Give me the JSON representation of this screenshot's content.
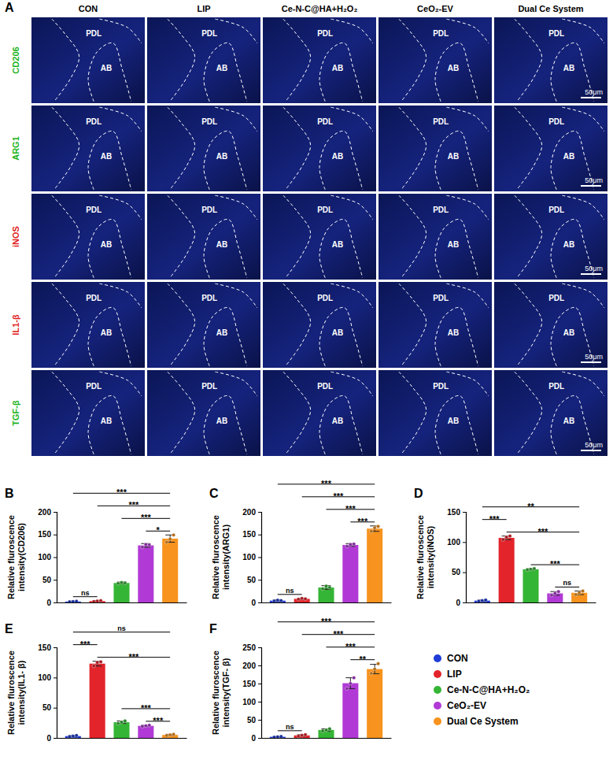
{
  "figure": {
    "panel_A": {
      "label": "A",
      "columns": [
        "CON",
        "LIP",
        "Ce-N-C@HA+H₂O₂",
        "CeO₂-EV",
        "Dual Ce System"
      ],
      "rows": [
        {
          "marker": "CD206",
          "color": "#1bb31b",
          "scale_bar": "50μm",
          "cells": [
            [
              "PDL",
              "AB"
            ],
            [
              "PDL",
              "AB"
            ],
            [
              "PDL",
              "AB"
            ],
            [
              "PDL",
              "AB"
            ],
            [
              "PDL",
              "AB"
            ]
          ]
        },
        {
          "marker": "ARG1",
          "color": "#1bb31b",
          "scale_bar": "50μm",
          "cells": [
            [
              "PDL",
              "AB"
            ],
            [
              "PDL",
              "AB"
            ],
            [
              "PDL",
              "AB"
            ],
            [
              "PDL",
              "AB"
            ],
            [
              "PDL",
              "AB"
            ]
          ]
        },
        {
          "marker": "iNOS",
          "color": "#e02020",
          "scale_bar": "50μm",
          "cells": [
            [
              "PDL",
              "AB"
            ],
            [
              "PDL",
              "AB"
            ],
            [
              "PDL",
              "AB"
            ],
            [
              "PDL",
              "AB"
            ],
            [
              "PDL",
              "AB"
            ]
          ]
        },
        {
          "marker": "IL1-β",
          "color": "#e02020",
          "scale_bar": "50μm",
          "cells": [
            [
              "PDL",
              "AB"
            ],
            [
              "PDL",
              "AB"
            ],
            [
              "PDL",
              "AB"
            ],
            [
              "PDL",
              "AB"
            ],
            [
              "PDL",
              "AB"
            ]
          ]
        },
        {
          "marker": "TGF-β",
          "color": "#1bb31b",
          "scale_bar": "50μm",
          "cells": [
            [
              "PDL",
              "AB"
            ],
            [
              "PDL",
              "AB"
            ],
            [
              "PDL",
              "AB"
            ],
            [
              "PDL",
              "AB"
            ],
            [
              "PDL",
              "AB"
            ]
          ]
        }
      ]
    }
  },
  "shared_legend": {
    "names": [
      "CON",
      "LIP",
      "Ce-N-C@HA+H₂O₂",
      "CeO₂-EV",
      "Dual Ce System"
    ],
    "colors": [
      "#1f3cd6",
      "#e3242b",
      "#35b535",
      "#b13ad6",
      "#f7931e"
    ]
  },
  "chart_data": [
    {
      "type": "bar",
      "panel_label": "B",
      "y_label": "Relative fluroscence intensity(CD206)",
      "categories": [
        null,
        null,
        null,
        null,
        null
      ],
      "values": [
        2,
        3,
        43,
        126,
        141
      ],
      "errors": [
        1,
        1,
        2,
        4,
        8
      ],
      "points": [
        [
          1.5,
          2,
          2.5
        ],
        [
          2,
          3,
          4
        ],
        [
          42,
          44,
          43
        ],
        [
          122,
          128,
          127
        ],
        [
          133,
          140,
          149
        ]
      ],
      "colors": [
        "#1f3cd6",
        "#e3242b",
        "#35b535",
        "#b13ad6",
        "#f7931e"
      ],
      "ylim": [
        0,
        200
      ],
      "yticks": [
        0,
        50,
        100,
        150,
        200
      ],
      "tick_labels": "y",
      "comparisons": [
        {
          "from": 0,
          "to": 1,
          "label": "ns"
        },
        {
          "from": 3,
          "to": 4,
          "label": "*"
        },
        {
          "from": 2,
          "to": 4,
          "label": "***"
        },
        {
          "from": 1,
          "to": 4,
          "label": "***"
        },
        {
          "from": 0,
          "to": 4,
          "label": "***"
        }
      ]
    },
    {
      "type": "bar",
      "panel_label": "C",
      "y_label": "Relative fluroscence intensity(ARG1)",
      "categories": [
        null,
        null,
        null,
        null,
        null
      ],
      "values": [
        4,
        8,
        33,
        127,
        163
      ],
      "errors": [
        2,
        1,
        4,
        3,
        6
      ],
      "points": [
        [
          3,
          5,
          4
        ],
        [
          7,
          9,
          8
        ],
        [
          30,
          36,
          33
        ],
        [
          124,
          128,
          129
        ],
        [
          157,
          165,
          168
        ]
      ],
      "colors": [
        "#1f3cd6",
        "#e3242b",
        "#35b535",
        "#b13ad6",
        "#f7931e"
      ],
      "ylim": [
        0,
        200
      ],
      "yticks": [
        0,
        50,
        100,
        150,
        200
      ],
      "tick_labels": "y",
      "comparisons": [
        {
          "from": 0,
          "to": 1,
          "label": "ns"
        },
        {
          "from": 3,
          "to": 4,
          "label": "***"
        },
        {
          "from": 2,
          "to": 4,
          "label": "***"
        },
        {
          "from": 1,
          "to": 4,
          "label": "***"
        },
        {
          "from": 0,
          "to": 4,
          "label": "***"
        }
      ]
    },
    {
      "type": "bar",
      "panel_label": "D",
      "y_label": "Relative fluroscence intensity(iNOS)",
      "categories": [
        null,
        null,
        null,
        null,
        null
      ],
      "values": [
        3,
        107,
        55,
        15,
        16
      ],
      "errors": [
        1,
        3,
        1,
        3,
        3
      ],
      "points": [
        [
          2,
          3,
          4
        ],
        [
          104,
          108,
          110
        ],
        [
          54,
          55,
          56
        ],
        [
          12,
          15,
          18
        ],
        [
          13,
          16,
          19
        ]
      ],
      "colors": [
        "#1f3cd6",
        "#e3242b",
        "#35b535",
        "#b13ad6",
        "#f7931e"
      ],
      "ylim": [
        0,
        150
      ],
      "yticks": [
        0,
        50,
        100,
        150
      ],
      "tick_labels": "y",
      "comparisons": [
        {
          "from": 3,
          "to": 4,
          "label": "ns"
        },
        {
          "from": 2,
          "to": 4,
          "label": "***"
        },
        {
          "from": 1,
          "to": 4,
          "label": "***"
        },
        {
          "from": 0,
          "to": 1,
          "label": "***"
        },
        {
          "from": 0,
          "to": 4,
          "label": "**"
        }
      ]
    },
    {
      "type": "bar",
      "panel_label": "E",
      "y_label": "Relative fluroscence intensity(IL1- β)",
      "categories": [
        null,
        null,
        null,
        null,
        null
      ],
      "values": [
        3,
        123,
        26,
        20,
        5
      ],
      "errors": [
        1,
        4,
        2,
        1,
        1
      ],
      "points": [
        [
          2,
          3,
          4
        ],
        [
          119,
          125,
          126
        ],
        [
          24,
          26,
          28
        ],
        [
          19,
          20,
          21
        ],
        [
          4,
          5,
          6
        ]
      ],
      "colors": [
        "#1f3cd6",
        "#e3242b",
        "#35b535",
        "#b13ad6",
        "#f7931e"
      ],
      "ylim": [
        0,
        150
      ],
      "yticks": [
        0,
        50,
        100,
        150
      ],
      "tick_labels": "y",
      "comparisons": [
        {
          "from": 3,
          "to": 4,
          "label": "***"
        },
        {
          "from": 2,
          "to": 4,
          "label": "***"
        },
        {
          "from": 1,
          "to": 4,
          "label": "***"
        },
        {
          "from": 0,
          "to": 1,
          "label": "***"
        },
        {
          "from": 0,
          "to": 4,
          "label": "ns"
        }
      ]
    },
    {
      "type": "bar",
      "panel_label": "F",
      "y_label": "Relative fluroscence intensity(TGF- β)",
      "categories": [
        null,
        null,
        null,
        null,
        null
      ],
      "values": [
        3,
        7,
        22,
        151,
        190
      ],
      "errors": [
        1,
        2,
        3,
        15,
        13
      ],
      "points": [
        [
          2,
          3,
          4
        ],
        [
          5,
          7,
          9
        ],
        [
          19,
          22,
          25
        ],
        [
          136,
          150,
          166
        ],
        [
          178,
          190,
          205
        ]
      ],
      "colors": [
        "#1f3cd6",
        "#e3242b",
        "#35b535",
        "#b13ad6",
        "#f7931e"
      ],
      "ylim": [
        0,
        250
      ],
      "yticks": [
        0,
        50,
        100,
        150,
        200,
        250
      ],
      "tick_labels": "y",
      "comparisons": [
        {
          "from": 0,
          "to": 1,
          "label": "ns"
        },
        {
          "from": 3,
          "to": 4,
          "label": "**"
        },
        {
          "from": 2,
          "to": 4,
          "label": "***"
        },
        {
          "from": 1,
          "to": 4,
          "label": "***"
        },
        {
          "from": 0,
          "to": 4,
          "label": "***"
        }
      ]
    }
  ]
}
